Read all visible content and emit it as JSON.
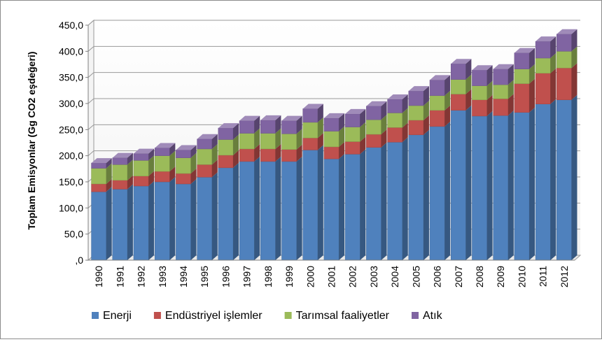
{
  "chart_data": {
    "type": "bar",
    "stacked": true,
    "three_d": true,
    "ylabel": "Toplam Emisyonlar (Gg CO2 eşdeğeri)",
    "xlabel": "",
    "ylim": [
      0,
      450
    ],
    "y_tick_step": 50,
    "y_tick_labels": [
      ",0",
      "50,0",
      "100,0",
      "150,0",
      "200,0",
      "250,0",
      "300,0",
      "350,0",
      "400,0",
      "450,0"
    ],
    "grid": true,
    "legend_position": "bottom",
    "categories": [
      "1990",
      "1991",
      "1992",
      "1993",
      "1994",
      "1995",
      "1996",
      "1997",
      "1998",
      "1999",
      "2000",
      "2001",
      "2002",
      "2003",
      "2004",
      "2005",
      "2006",
      "2007",
      "2008",
      "2009",
      "2010",
      "2011",
      "2012"
    ],
    "series": [
      {
        "name": "Enerji",
        "color": "#4f81bd",
        "values": [
          131,
          136,
          142,
          150,
          146,
          159,
          177,
          189,
          189,
          189,
          211,
          194,
          203,
          216,
          226,
          240,
          256,
          287,
          276,
          277,
          283,
          299,
          307
        ]
      },
      {
        "name": "Endüstriyel işlemler",
        "color": "#c0504d",
        "values": [
          15,
          17,
          19,
          20,
          20,
          24,
          24,
          24,
          24,
          23,
          23,
          23,
          24,
          25,
          28,
          28,
          31,
          31,
          31,
          32,
          55,
          59,
          61
        ]
      },
      {
        "name": "Tarımsal faaliyetler",
        "color": "#9bbb59",
        "values": [
          30,
          30,
          30,
          30,
          30,
          30,
          30,
          30,
          30,
          30,
          30,
          30,
          28,
          28,
          28,
          28,
          28,
          28,
          27,
          27,
          28,
          29,
          32
        ]
      },
      {
        "name": "Atık",
        "color": "#8064a2",
        "values": [
          10,
          13,
          13,
          15,
          15,
          19,
          22,
          24,
          25,
          25,
          26,
          25,
          25,
          26,
          26,
          28,
          30,
          30,
          30,
          30,
          31,
          32,
          33
        ]
      }
    ]
  }
}
